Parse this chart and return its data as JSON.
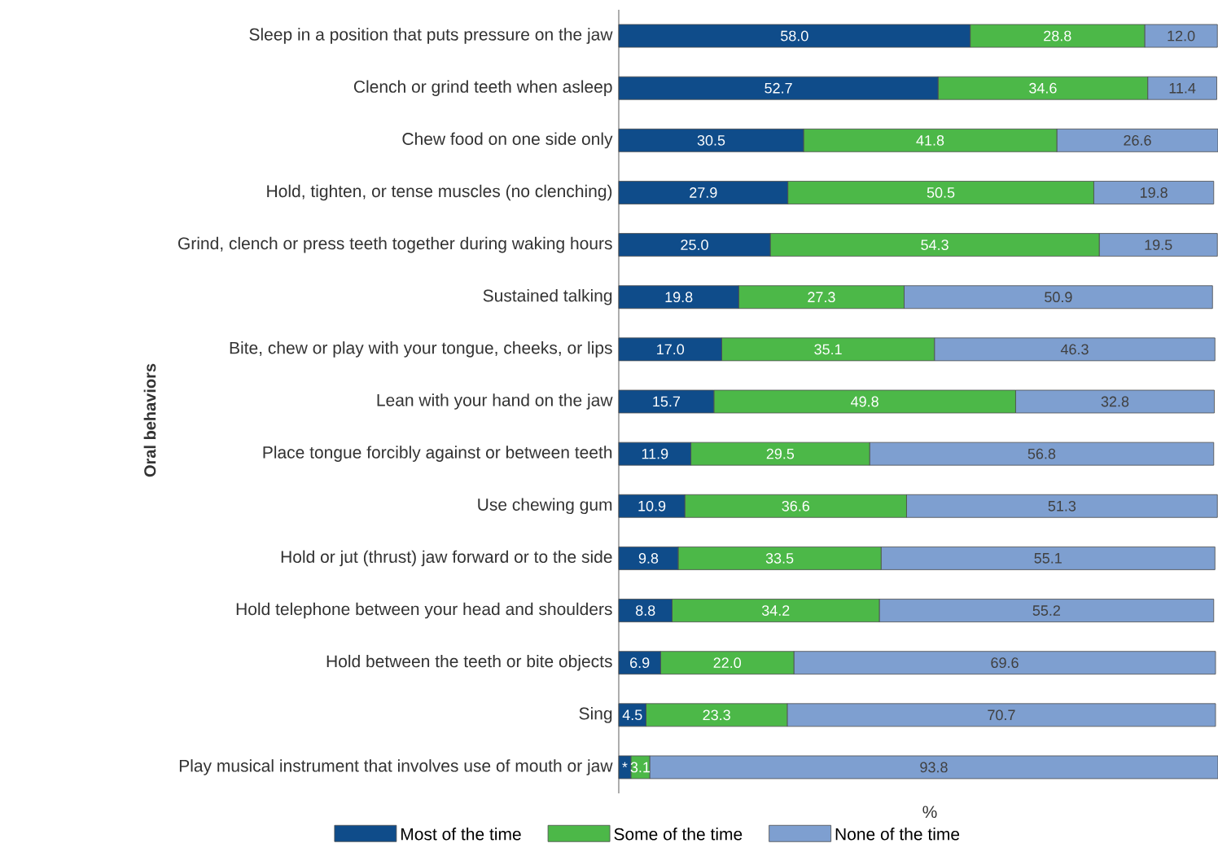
{
  "chart_data": {
    "type": "bar",
    "orientation": "horizontal",
    "stacked": true,
    "ylabel": "Oral behaviors",
    "xlabel": "%",
    "legend": "bottom",
    "categories": [
      "Sleep in a position that puts pressure on the jaw",
      "Clench or grind teeth when asleep",
      "Chew food on one side only",
      "Hold, tighten, or tense muscles (no clenching)",
      "Grind, clench or press teeth together during waking hours",
      "Sustained talking",
      "Bite, chew or play with your tongue, cheeks, or lips",
      "Lean with your hand on the jaw",
      "Place tongue forcibly against or between teeth",
      "Use chewing gum",
      "Hold or jut (thrust) jaw forward or to the side",
      "Hold telephone between your head and shoulders",
      "Hold between the teeth or bite objects",
      "Sing",
      "Play musical instrument that involves use of mouth or jaw"
    ],
    "series": [
      {
        "name": "Most of the time",
        "color": "#0f4c8a",
        "values": [
          58.0,
          52.7,
          30.5,
          27.9,
          25.0,
          19.8,
          17.0,
          15.7,
          11.9,
          10.9,
          9.8,
          8.8,
          6.9,
          4.5,
          2
        ],
        "value_labels": [
          "58.0",
          "52.7",
          "30.5",
          "27.9",
          "25.0",
          "19.8",
          "17.0",
          "15.7",
          "11.9",
          "10.9",
          "9.8",
          "8.8",
          "6.9",
          "4.5",
          "*"
        ]
      },
      {
        "name": "Some of the time",
        "color": "#4cb848",
        "values": [
          28.8,
          34.6,
          41.8,
          50.5,
          54.3,
          27.3,
          35.1,
          49.8,
          29.5,
          36.6,
          33.5,
          34.2,
          22.0,
          23.3,
          3.1
        ],
        "value_labels": [
          "28.8",
          "34.6",
          "41.8",
          "50.5",
          "54.3",
          "27.3",
          "35.1",
          "49.8",
          "29.5",
          "36.6",
          "33.5",
          "34.2",
          "22.0",
          "23.3",
          "3.1"
        ]
      },
      {
        "name": "None of the time",
        "color": "#7e9fd0",
        "values": [
          12.0,
          11.4,
          26.6,
          19.8,
          19.5,
          50.9,
          46.3,
          32.8,
          56.8,
          51.3,
          55.1,
          55.2,
          69.6,
          70.7,
          93.8
        ],
        "value_labels": [
          "12.0",
          "11.4",
          "26.6",
          "19.8",
          "19.5",
          "50.9",
          "46.3",
          "32.8",
          "56.8",
          "51.3",
          "55.1",
          "55.2",
          "69.6",
          "70.7",
          "93.8"
        ]
      }
    ]
  }
}
